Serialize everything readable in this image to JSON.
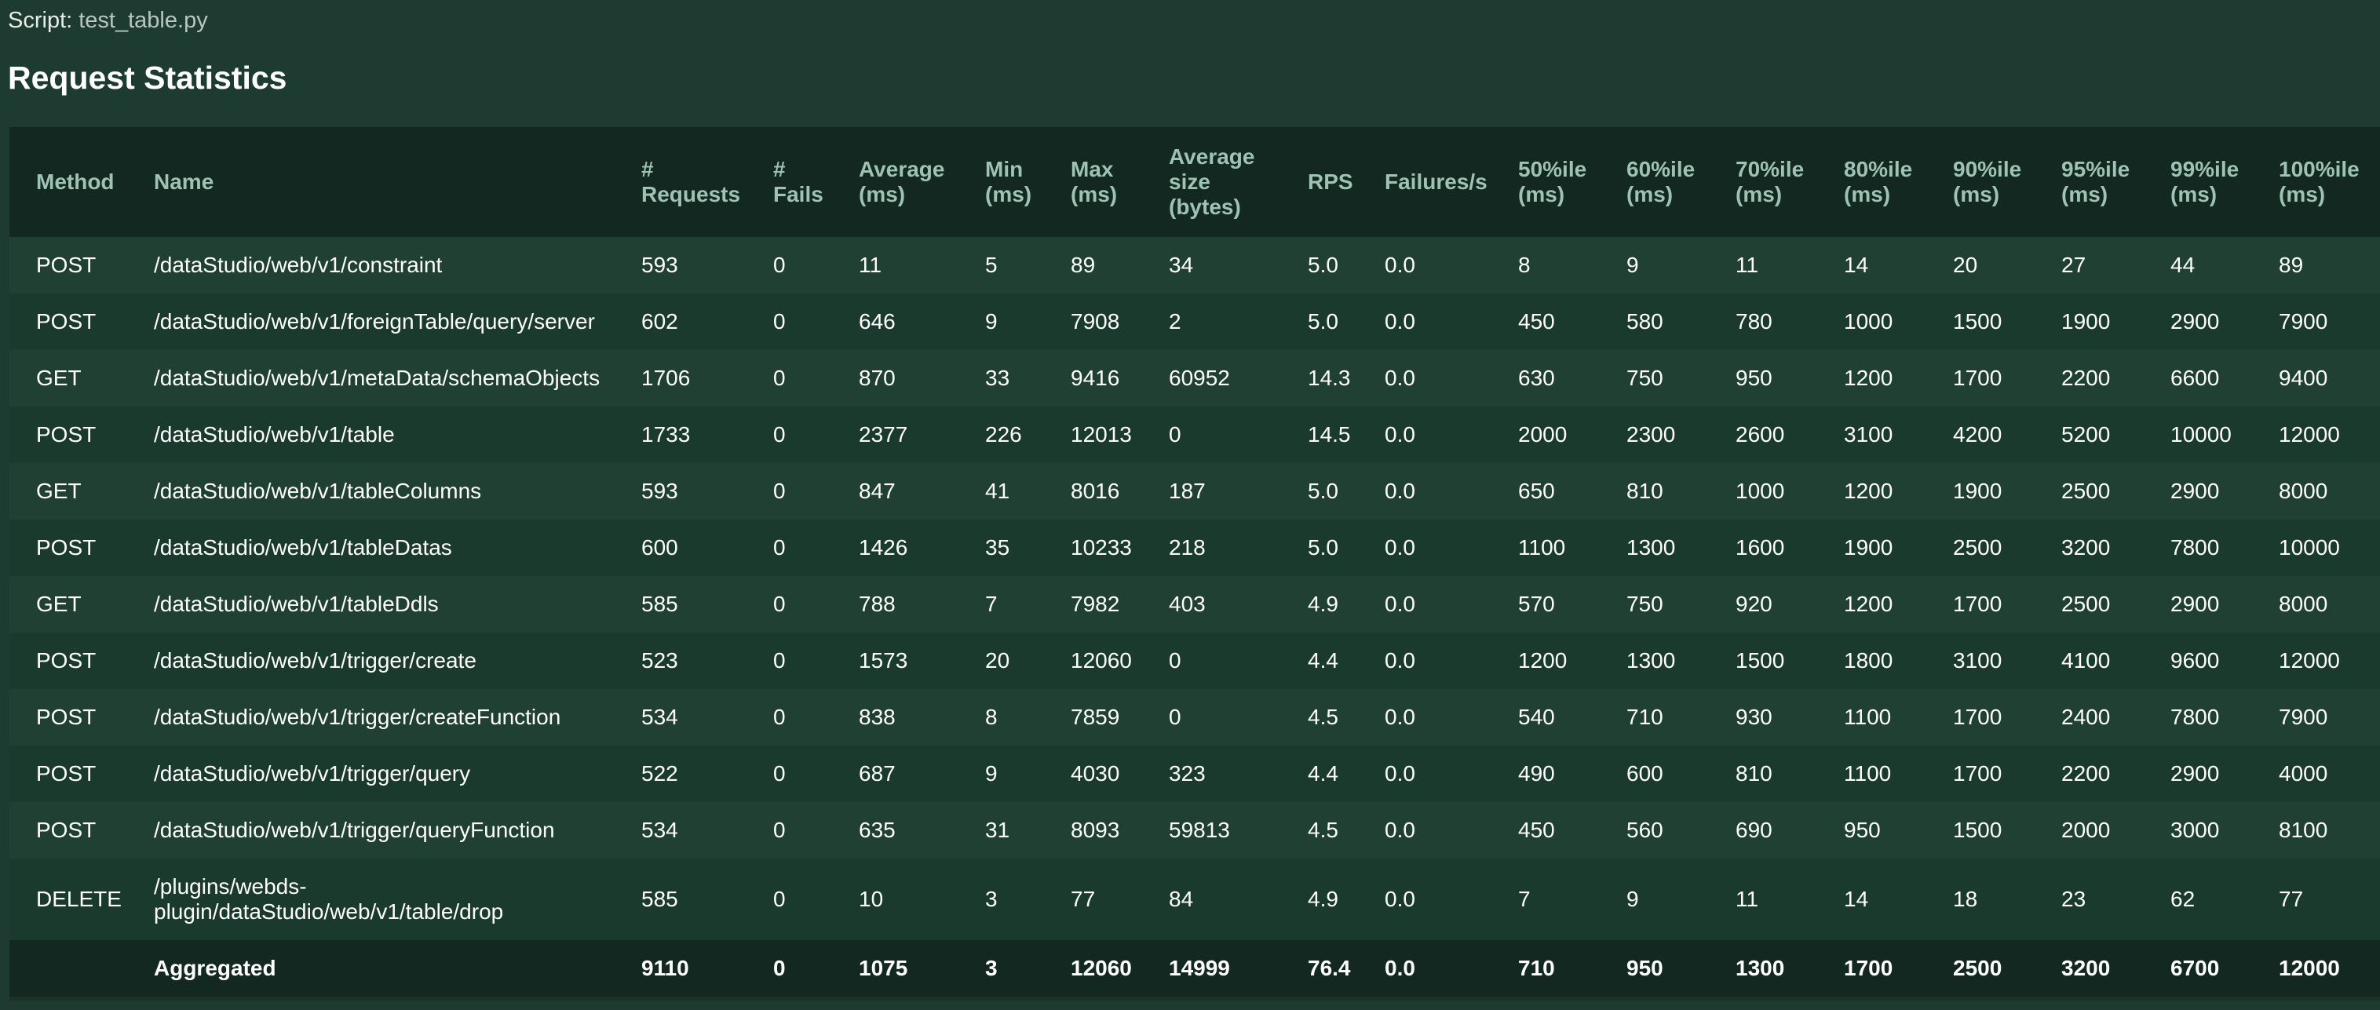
{
  "script": {
    "label": "Script:",
    "value": "test_table.py"
  },
  "page_title": "Request Statistics",
  "table": {
    "columns": [
      "Method",
      "Name",
      "# Requests",
      "# Fails",
      "Average (ms)",
      "Min (ms)",
      "Max (ms)",
      "Average size (bytes)",
      "RPS",
      "Failures/s",
      "50%ile (ms)",
      "60%ile (ms)",
      "70%ile (ms)",
      "80%ile (ms)",
      "90%ile (ms)",
      "95%ile (ms)",
      "99%ile (ms)",
      "100%ile (ms)"
    ],
    "rows": [
      [
        "POST",
        "/dataStudio/web/v1/constraint",
        "593",
        "0",
        "11",
        "5",
        "89",
        "34",
        "5.0",
        "0.0",
        "8",
        "9",
        "11",
        "14",
        "20",
        "27",
        "44",
        "89"
      ],
      [
        "POST",
        "/dataStudio/web/v1/foreignTable/query/server",
        "602",
        "0",
        "646",
        "9",
        "7908",
        "2",
        "5.0",
        "0.0",
        "450",
        "580",
        "780",
        "1000",
        "1500",
        "1900",
        "2900",
        "7900"
      ],
      [
        "GET",
        "/dataStudio/web/v1/metaData/schemaObjects",
        "1706",
        "0",
        "870",
        "33",
        "9416",
        "60952",
        "14.3",
        "0.0",
        "630",
        "750",
        "950",
        "1200",
        "1700",
        "2200",
        "6600",
        "9400"
      ],
      [
        "POST",
        "/dataStudio/web/v1/table",
        "1733",
        "0",
        "2377",
        "226",
        "12013",
        "0",
        "14.5",
        "0.0",
        "2000",
        "2300",
        "2600",
        "3100",
        "4200",
        "5200",
        "10000",
        "12000"
      ],
      [
        "GET",
        "/dataStudio/web/v1/tableColumns",
        "593",
        "0",
        "847",
        "41",
        "8016",
        "187",
        "5.0",
        "0.0",
        "650",
        "810",
        "1000",
        "1200",
        "1900",
        "2500",
        "2900",
        "8000"
      ],
      [
        "POST",
        "/dataStudio/web/v1/tableDatas",
        "600",
        "0",
        "1426",
        "35",
        "10233",
        "218",
        "5.0",
        "0.0",
        "1100",
        "1300",
        "1600",
        "1900",
        "2500",
        "3200",
        "7800",
        "10000"
      ],
      [
        "GET",
        "/dataStudio/web/v1/tableDdls",
        "585",
        "0",
        "788",
        "7",
        "7982",
        "403",
        "4.9",
        "0.0",
        "570",
        "750",
        "920",
        "1200",
        "1700",
        "2500",
        "2900",
        "8000"
      ],
      [
        "POST",
        "/dataStudio/web/v1/trigger/create",
        "523",
        "0",
        "1573",
        "20",
        "12060",
        "0",
        "4.4",
        "0.0",
        "1200",
        "1300",
        "1500",
        "1800",
        "3100",
        "4100",
        "9600",
        "12000"
      ],
      [
        "POST",
        "/dataStudio/web/v1/trigger/createFunction",
        "534",
        "0",
        "838",
        "8",
        "7859",
        "0",
        "4.5",
        "0.0",
        "540",
        "710",
        "930",
        "1100",
        "1700",
        "2400",
        "7800",
        "7900"
      ],
      [
        "POST",
        "/dataStudio/web/v1/trigger/query",
        "522",
        "0",
        "687",
        "9",
        "4030",
        "323",
        "4.4",
        "0.0",
        "490",
        "600",
        "810",
        "1100",
        "1700",
        "2200",
        "2900",
        "4000"
      ],
      [
        "POST",
        "/dataStudio/web/v1/trigger/queryFunction",
        "534",
        "0",
        "635",
        "31",
        "8093",
        "59813",
        "4.5",
        "0.0",
        "450",
        "560",
        "690",
        "950",
        "1500",
        "2000",
        "3000",
        "8100"
      ],
      [
        "DELETE",
        "/plugins/webds-plugin/dataStudio/web/v1/table/drop",
        "585",
        "0",
        "10",
        "3",
        "77",
        "84",
        "4.9",
        "0.0",
        "7",
        "9",
        "11",
        "14",
        "18",
        "23",
        "62",
        "77"
      ]
    ],
    "aggregated": [
      "",
      "Aggregated",
      "9110",
      "0",
      "1075",
      "3",
      "12060",
      "14999",
      "76.4",
      "0.0",
      "710",
      "950",
      "1300",
      "1700",
      "2500",
      "3200",
      "6700",
      "12000"
    ]
  }
}
